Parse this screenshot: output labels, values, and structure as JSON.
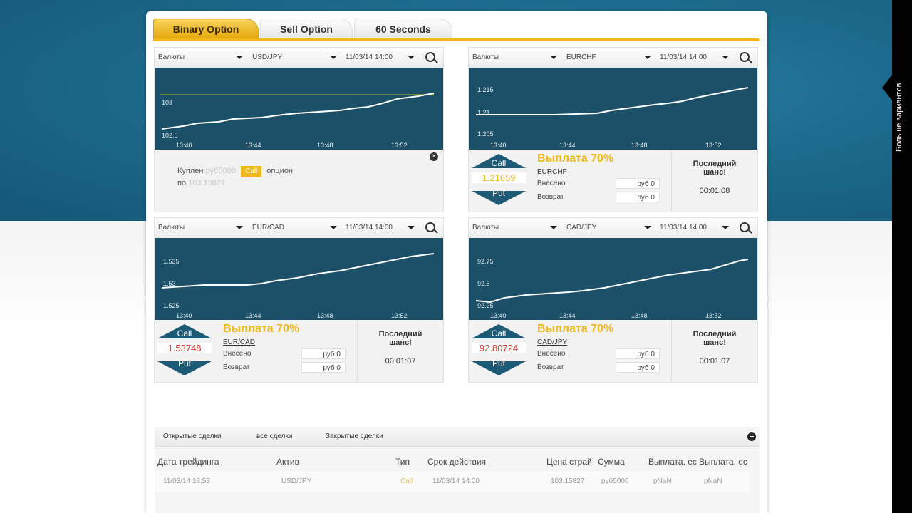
{
  "tabs": [
    "Binary Option",
    "Sell Option",
    "60 Seconds"
  ],
  "side_panel_label": "Больше вариантов",
  "widgets": [
    {
      "category": "Валюты",
      "pair": "USD/JPY",
      "expiry": "11/03/14 14:00",
      "x_ticks": [
        "13:40",
        "13:44",
        "13:48",
        "13:52"
      ],
      "y_ticks": [
        "103",
        "102.5"
      ],
      "mode": "bought",
      "bought": {
        "prefix": "Куплен",
        "amount": "руб5000",
        "badge": "Call",
        "suffix": "опцион",
        "at": "по",
        "price": "103.15827"
      },
      "close": "×"
    },
    {
      "category": "Валюты",
      "pair": "EURCHF",
      "expiry": "11/03/14 14:00",
      "x_ticks": [
        "13:40",
        "13:44",
        "13:48",
        "13:52"
      ],
      "y_ticks": [
        "1.215",
        "1.21",
        "1.205"
      ],
      "mode": "trade",
      "call": "Call",
      "put": "Put",
      "price": "1.21659",
      "price_color": "#f2b81a",
      "payout": "Выплата 70%",
      "pair_link": "EURCHF",
      "invested_label": "Внесено",
      "invested_value": "руб 0",
      "return_label": "Возврат",
      "return_value": "руб 0",
      "last_chance": "Последний шанс!",
      "timer": "00:01:08"
    },
    {
      "category": "Валюты",
      "pair": "EUR/CAD",
      "expiry": "11/03/14 14:00",
      "x_ticks": [
        "13:40",
        "13:44",
        "13:48",
        "13:52"
      ],
      "y_ticks": [
        "1.535",
        "1.53",
        "1.525"
      ],
      "mode": "trade",
      "call": "Call",
      "put": "Put",
      "price": "1.53748",
      "price_color": "#d9342b",
      "payout": "Выплата 70%",
      "pair_link": "EUR/CAD",
      "invested_label": "Внесено",
      "invested_value": "руб 0",
      "return_label": "Возврат",
      "return_value": "руб 0",
      "last_chance": "Последний шанс!",
      "timer": "00:01:07"
    },
    {
      "category": "Валюты",
      "pair": "CAD/JPY",
      "expiry": "11/03/14 14:00",
      "x_ticks": [
        "13:40",
        "13:44",
        "13:48",
        "13:52"
      ],
      "y_ticks": [
        "92.75",
        "92.5",
        "92.25"
      ],
      "mode": "trade",
      "call": "Call",
      "put": "Put",
      "price": "92.80724",
      "price_color": "#d9342b",
      "payout": "Выплата 70%",
      "pair_link": "CAD/JPY",
      "invested_label": "Внесено",
      "invested_value": "руб 0",
      "return_label": "Возврат",
      "return_value": "руб 0",
      "last_chance": "Последний шанс!",
      "timer": "00:01:07"
    }
  ],
  "trades": {
    "tabs": [
      "Открытые сделки",
      "все сделки",
      "Закрытые сделки"
    ],
    "headers": [
      "Дата трейдинга",
      "Актив",
      "Тип",
      "Срок действия",
      "Цена страй",
      "Сумма",
      "Выплата, ес",
      "Выплата, ес"
    ],
    "row": [
      "11/03/14 13:53",
      "USD/JPY",
      "Call",
      "11/03/14 14:00",
      "103.15827",
      "руб5000",
      "pNaN",
      "pNaN"
    ]
  },
  "colors": {
    "accent": "#f2b81a",
    "chart_bg": "#1b5068",
    "header_bg": "#1d6b8e"
  }
}
